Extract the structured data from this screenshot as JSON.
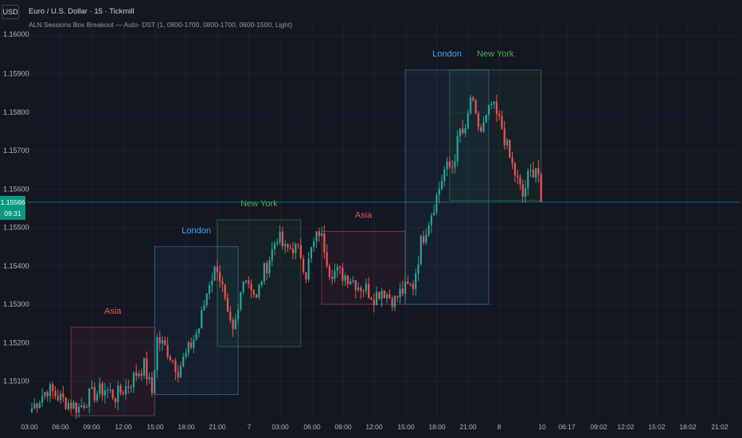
{
  "header": {
    "currency": "USD",
    "title": "Euro / U.S. Dollar · 15 · Tickmill",
    "subtitle": "ALN Sessions Box Breakout — Auto- DST (1, 0800-1700, 0800-1700, 0600-1500, Light)"
  },
  "price_tag": {
    "price": "1.15566",
    "countdown": "09:31"
  },
  "colors": {
    "background": "#131722",
    "grid": "#1e222d",
    "bull": "#26a69a",
    "bear": "#ef5350",
    "asia": "#ef5350",
    "london": "#42a5f5",
    "newyork": "#4caf50",
    "price_line": "#089981"
  },
  "chart_data": {
    "type": "candlestick",
    "symbol": "Euro / U.S. Dollar",
    "timeframe": "15",
    "ylim": [
      1.1501,
      1.1603
    ],
    "yticks": [
      "1.16000",
      "1.15900",
      "1.15800",
      "1.15700",
      "1.15600",
      "1.15500",
      "1.15400",
      "1.15300",
      "1.15200",
      "1.15100"
    ],
    "xticks": [
      "03:00",
      "06:00",
      "09:00",
      "12:00",
      "15:00",
      "18:00",
      "21:00",
      "7",
      "03:00",
      "06:00",
      "09:00",
      "12:00",
      "15:00",
      "18:00",
      "21:00",
      "8",
      "10",
      "06:17",
      "09:02",
      "12:02",
      "15:02",
      "18:02",
      "21:02"
    ],
    "last_price": 1.15566,
    "sessions": [
      {
        "label": "Asia",
        "session": "asia",
        "start": 15,
        "end": 47,
        "high": 1.1524,
        "low": 1.1501
      },
      {
        "label": "London",
        "session": "london",
        "start": 47,
        "end": 79,
        "high": 1.1545,
        "low": 1.15065
      },
      {
        "label": "New York",
        "session": "newyork",
        "start": 71,
        "end": 103,
        "high": 1.1552,
        "low": 1.1519
      },
      {
        "label": "Asia",
        "session": "asia",
        "start": 111,
        "end": 143,
        "high": 1.1549,
        "low": 1.153
      },
      {
        "label": "London",
        "session": "london",
        "start": 143,
        "end": 175,
        "high": 1.1591,
        "low": 1.153
      },
      {
        "label": "New York",
        "session": "newyork",
        "start": 160,
        "end": 195,
        "high": 1.1591,
        "low": 1.1557
      }
    ],
    "anchors": [
      [
        0,
        1.1503
      ],
      [
        6,
        1.1508
      ],
      [
        12,
        1.1505
      ],
      [
        18,
        1.1503
      ],
      [
        22,
        1.1506
      ],
      [
        28,
        1.1508
      ],
      [
        32,
        1.1506
      ],
      [
        37,
        1.1509
      ],
      [
        40,
        1.1512
      ],
      [
        43,
        1.1514
      ],
      [
        46,
        1.1507
      ],
      [
        48,
        1.1521
      ],
      [
        52,
        1.1518
      ],
      [
        56,
        1.1513
      ],
      [
        60,
        1.1518
      ],
      [
        64,
        1.1524
      ],
      [
        68,
        1.1536
      ],
      [
        71,
        1.154
      ],
      [
        73,
        1.1534
      ],
      [
        75,
        1.1526
      ],
      [
        77,
        1.1522
      ],
      [
        79,
        1.1528
      ],
      [
        81,
        1.1538
      ],
      [
        84,
        1.1535
      ],
      [
        86,
        1.1531
      ],
      [
        88,
        1.1537
      ],
      [
        91,
        1.1542
      ],
      [
        94,
        1.1548
      ],
      [
        97,
        1.1544
      ],
      [
        100,
        1.1545
      ],
      [
        103,
        1.1543
      ],
      [
        105,
        1.1538
      ],
      [
        107,
        1.1544
      ],
      [
        110,
        1.1549
      ],
      [
        112,
        1.1545
      ],
      [
        114,
        1.1539
      ],
      [
        118,
        1.1538
      ],
      [
        122,
        1.1537
      ],
      [
        125,
        1.1535
      ],
      [
        128,
        1.1534
      ],
      [
        131,
        1.1532
      ],
      [
        134,
        1.1534
      ],
      [
        137,
        1.1532
      ],
      [
        139,
        1.1531
      ],
      [
        141,
        1.1533
      ],
      [
        143,
        1.1534
      ],
      [
        146,
        1.1535
      ],
      [
        149,
        1.1546
      ],
      [
        152,
        1.1552
      ],
      [
        155,
        1.1558
      ],
      [
        158,
        1.1565
      ],
      [
        161,
        1.1566
      ],
      [
        164,
        1.1575
      ],
      [
        166,
        1.1574
      ],
      [
        168,
        1.1584
      ],
      [
        170,
        1.1578
      ],
      [
        172,
        1.1575
      ],
      [
        174,
        1.1578
      ],
      [
        176,
        1.1582
      ],
      [
        178,
        1.1579
      ],
      [
        180,
        1.1576
      ],
      [
        183,
        1.1568
      ],
      [
        186,
        1.1562
      ],
      [
        188,
        1.1558
      ],
      [
        190,
        1.1563
      ],
      [
        193,
        1.1566
      ],
      [
        195,
        1.1562
      ]
    ],
    "candle_count": 196
  }
}
